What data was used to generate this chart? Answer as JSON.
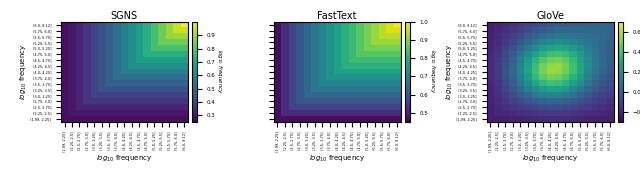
{
  "titles": [
    "SGNS",
    "FastText",
    "GloVe"
  ],
  "xlabel": "$log_{10}$ frequency",
  "ylabel": "$log_{10}$ frequency",
  "tick_labels": [
    "(1.99, 2.25]",
    "(2.25, 2.5]",
    "(2.5, 2.75]",
    "(2.75, 3.0]",
    "(3.0, 3.25]",
    "(3.25, 3.5]",
    "(3.5, 3.75]",
    "(3.75, 4.0]",
    "(4.0, 4.25]",
    "(4.25, 4.5]",
    "(4.5, 4.75]",
    "(4.75, 5.0]",
    "(5.0, 5.25]",
    "(5.25, 5.5]",
    "(5.5, 5.75]",
    "(5.75, 6.0]",
    "(6.0, 8.12]"
  ],
  "cmap": "viridis",
  "colorbars": [
    {
      "vmin": 0.25,
      "vmax": 1.0,
      "ticks": [
        0.3,
        0.4,
        0.5,
        0.6,
        0.7,
        0.8,
        0.9
      ],
      "label": true
    },
    {
      "vmin": 0.45,
      "vmax": 1.0,
      "ticks": [
        0.5,
        0.6,
        0.7,
        0.8,
        0.9,
        1.0
      ],
      "label": true
    },
    {
      "vmin": -0.3,
      "vmax": 0.7,
      "ticks": [
        -0.2,
        0.0,
        0.2,
        0.4,
        0.6
      ],
      "label": false
    }
  ],
  "show_yticks": [
    true,
    false,
    true
  ],
  "show_ylabel": [
    true,
    false,
    true
  ]
}
